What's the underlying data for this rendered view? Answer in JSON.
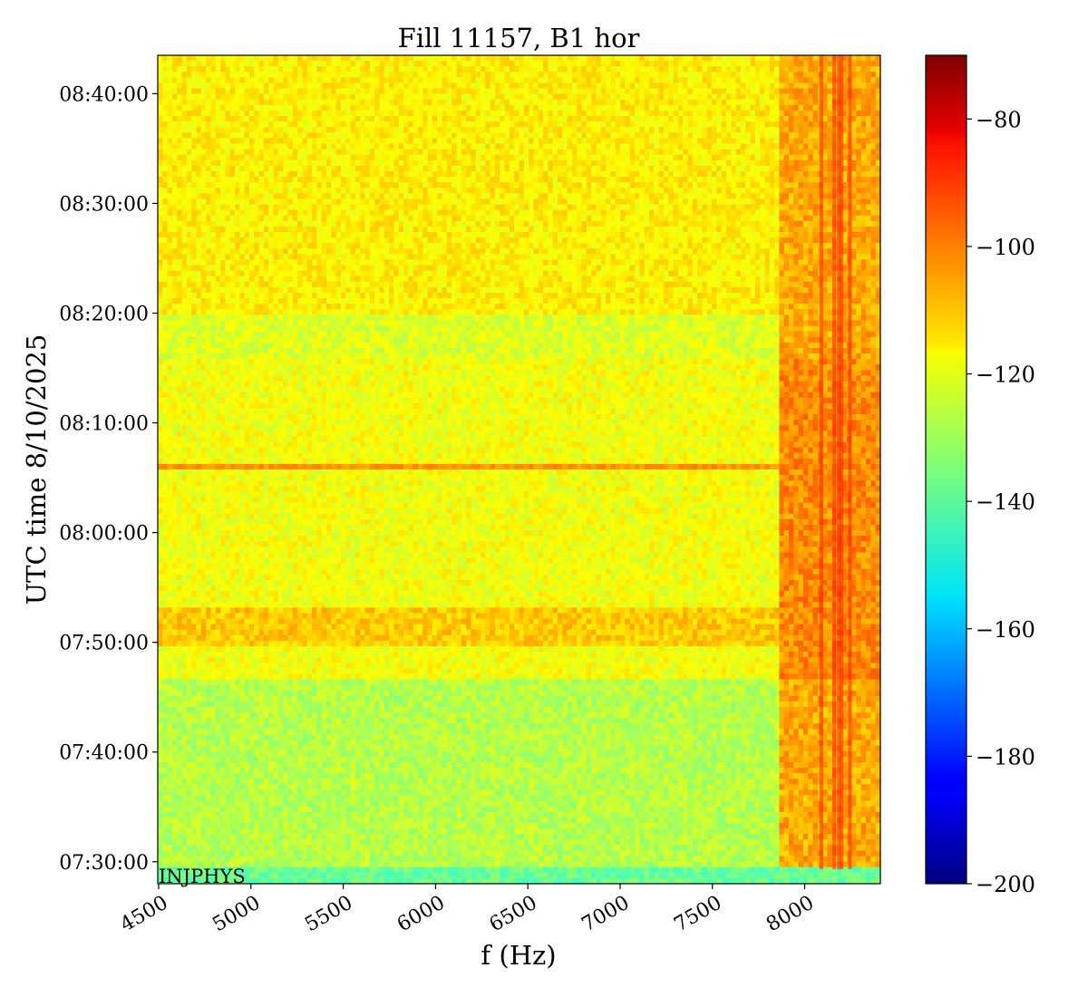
{
  "chart_data": {
    "type": "heatmap",
    "title": "Fill 11157, B1 hor",
    "xlabel": "f (Hz)",
    "ylabel": "UTC time 8/10/2025",
    "annotation": "INJPHYS",
    "xlim": [
      4495,
      8410
    ],
    "xticks": [
      4500,
      5000,
      5500,
      6000,
      6500,
      7000,
      7500,
      8000
    ],
    "xtick_labels": [
      "4500",
      "5000",
      "5500",
      "6000",
      "6500",
      "7000",
      "7500",
      "8000"
    ],
    "ylim_minutes": [
      448,
      523.5
    ],
    "yticks_minutes": [
      450,
      460,
      470,
      480,
      490,
      500,
      510,
      520
    ],
    "ytick_labels": [
      "07:30:00",
      "07:40:00",
      "07:50:00",
      "08:00:00",
      "08:10:00",
      "08:20:00",
      "08:30:00",
      "08:40:00"
    ],
    "colorbar": {
      "colormap": "jet",
      "range": [
        -200,
        -70
      ],
      "ticks": [
        -200,
        -180,
        -160,
        -140,
        -120,
        -100,
        -80
      ],
      "tick_labels": [
        "−200",
        "−180",
        "−160",
        "−140",
        "−120",
        "−100",
        "−80"
      ]
    },
    "regions": [
      {
        "t_from": "07:28:00",
        "t_to": "07:29:20",
        "level_db": -138
      },
      {
        "t_from": "07:29:20",
        "t_to": "07:46:40",
        "level_db": -128
      },
      {
        "t_from": "07:46:40",
        "t_to": "07:49:30",
        "level_db": -120
      },
      {
        "t_from": "07:49:30",
        "t_to": "07:53:00",
        "level_db": -112
      },
      {
        "t_from": "07:53:00",
        "t_to": "08:16:00",
        "level_db": -120
      },
      {
        "t_from": "08:16:00",
        "t_to": "08:20:00",
        "level_db": -123
      },
      {
        "t_from": "08:20:00",
        "t_to": "08:43:30",
        "level_db": -117
      }
    ],
    "high_frequency_band": {
      "f_from_hz": 7850,
      "f_to_hz": 8400,
      "level_db": -104
    },
    "peak_lines_hz": [
      8090,
      8160,
      8185,
      8200,
      8245
    ],
    "peak_line_level_db": -90,
    "horizontal_line": {
      "time": "08:06:00",
      "level_db": -105
    }
  }
}
